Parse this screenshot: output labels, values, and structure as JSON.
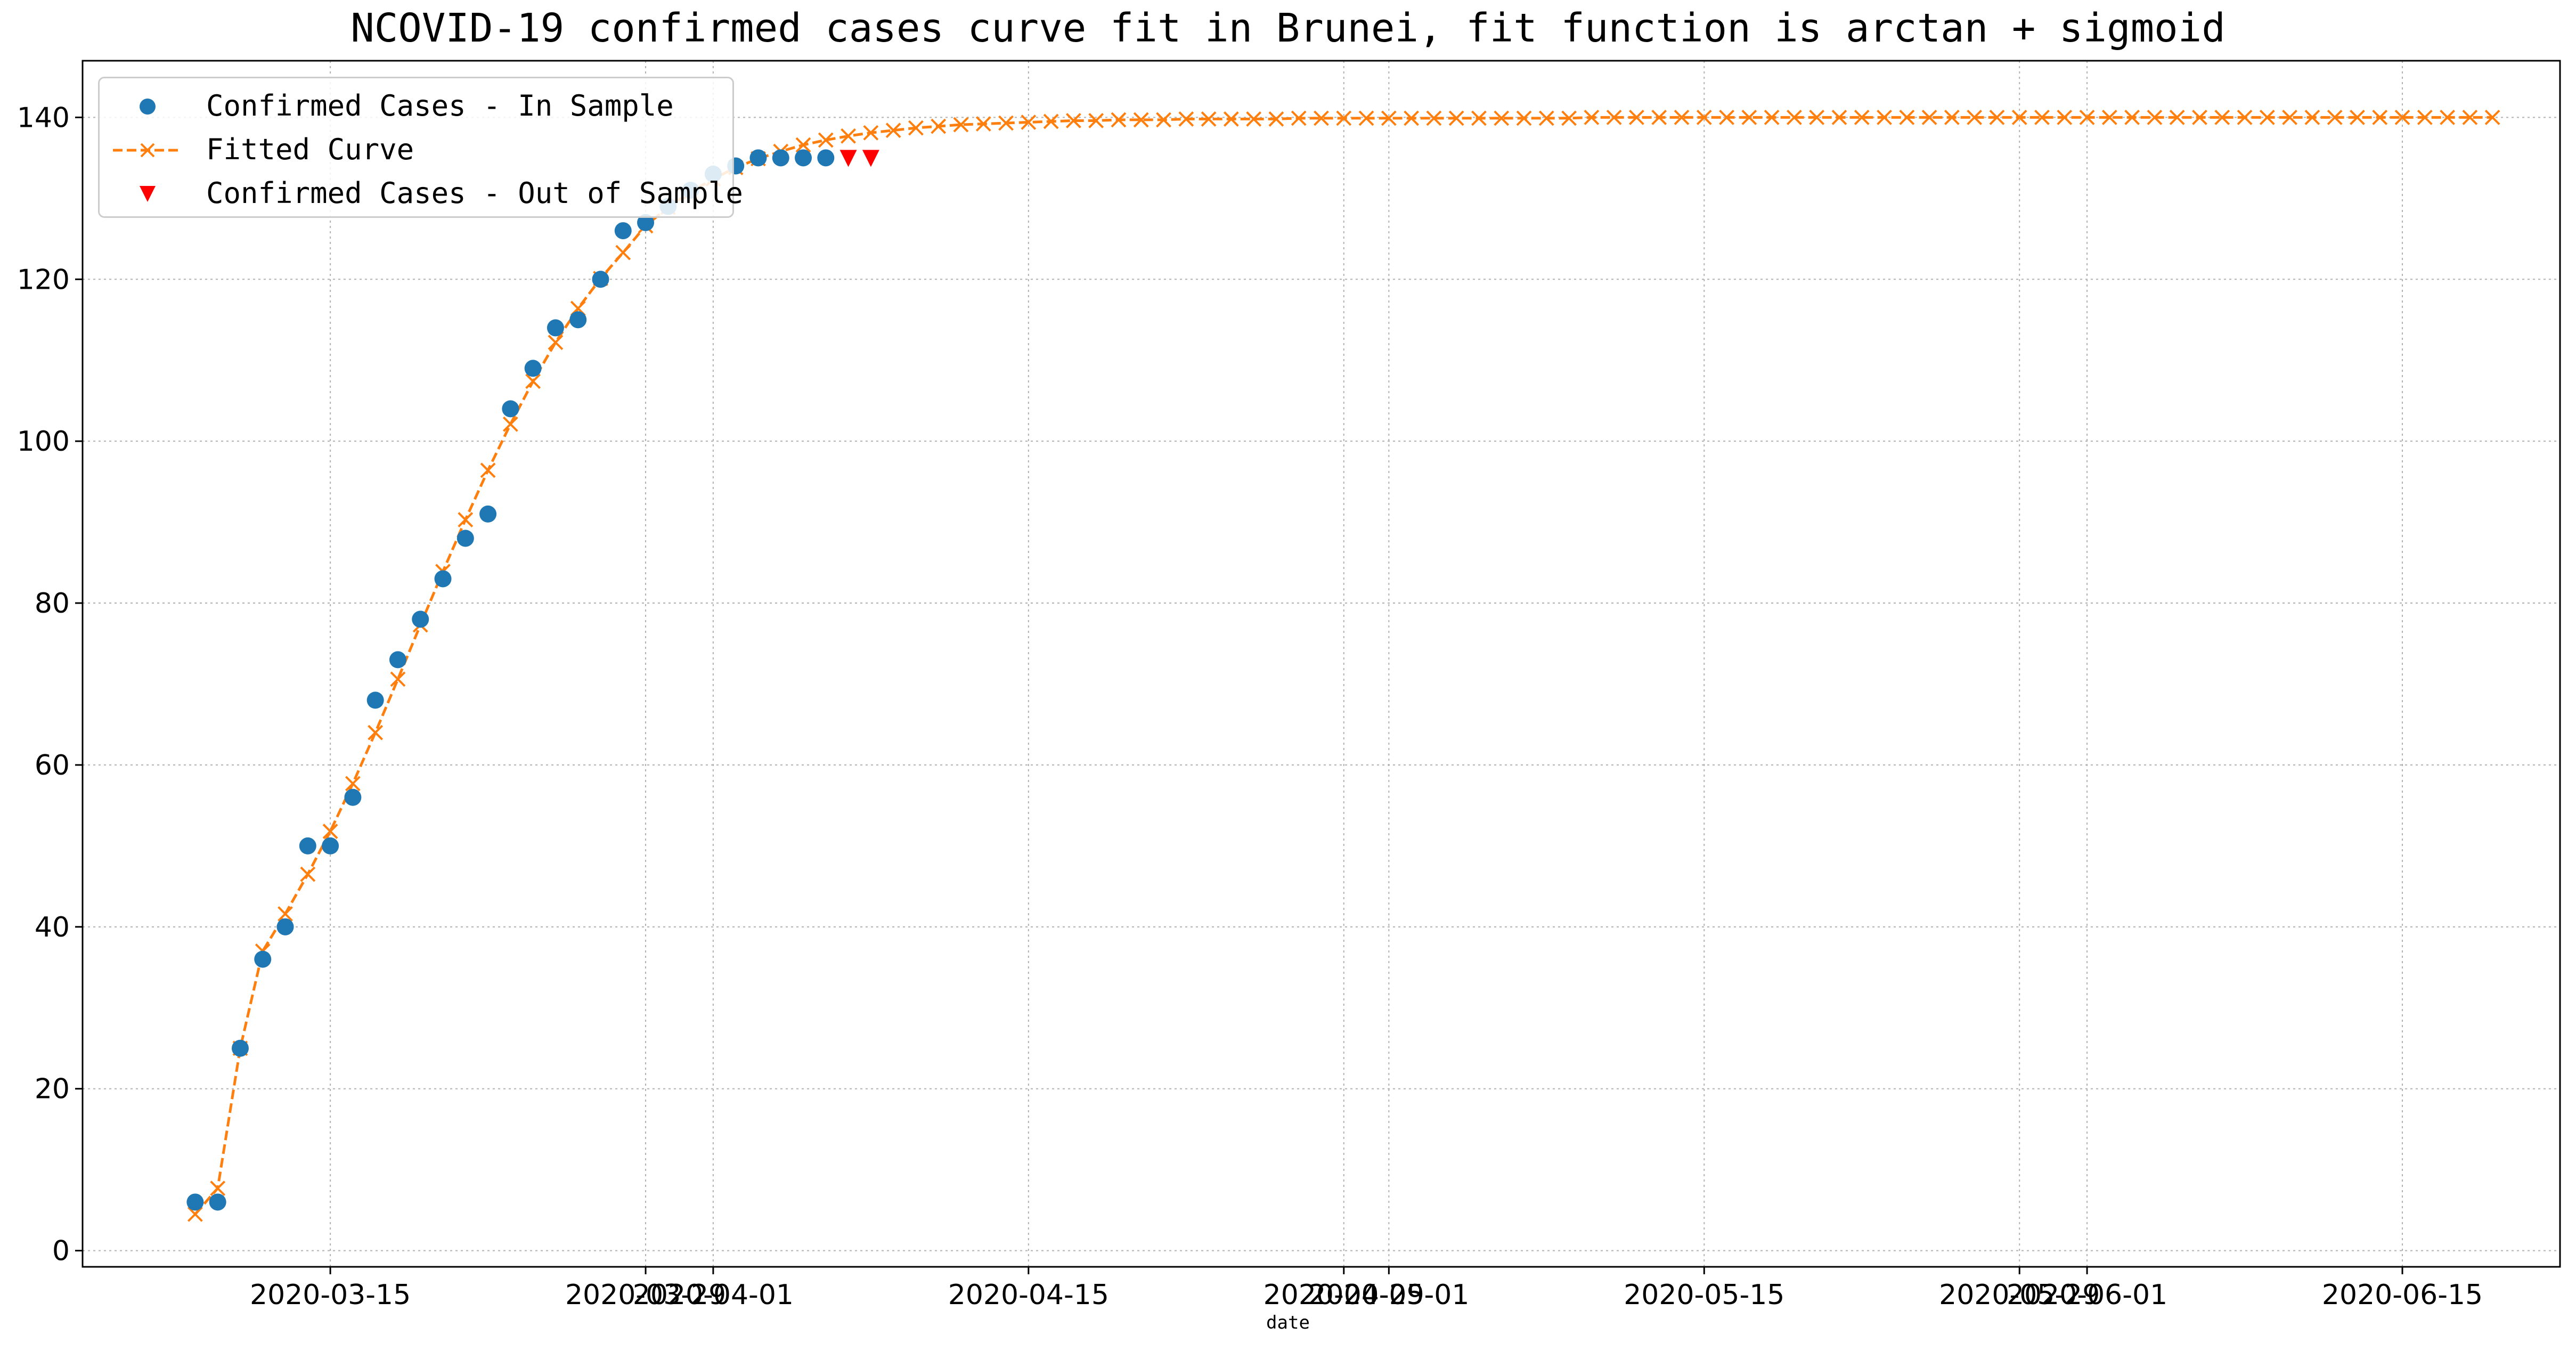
{
  "chart_data": {
    "type": "line",
    "title": "NCOVID-19 confirmed cases curve fit in Brunei, fit function is arctan + sigmoid",
    "xlabel": "date",
    "ylabel": "",
    "x_tick_labels": [
      "2020-03-15",
      "2020-03-29",
      "2020-04-01",
      "2020-04-15",
      "2020-04-29",
      "2020-05-01",
      "2020-05-15",
      "2020-05-29",
      "2020-06-01",
      "2020-06-15"
    ],
    "y_tick_labels": [
      "0",
      "20",
      "40",
      "60",
      "80",
      "100",
      "120",
      "140"
    ],
    "xlim": [
      "2020-03-04",
      "2020-06-22"
    ],
    "ylim": [
      -2,
      147
    ],
    "grid": true,
    "legend_position": "upper-left",
    "series": [
      {
        "name": "Confirmed Cases - In Sample",
        "kind": "scatter-circle",
        "color": "#1f77b4",
        "x": [
          "2020-03-09",
          "2020-03-10",
          "2020-03-11",
          "2020-03-12",
          "2020-03-13",
          "2020-03-14",
          "2020-03-15",
          "2020-03-16",
          "2020-03-17",
          "2020-03-18",
          "2020-03-19",
          "2020-03-20",
          "2020-03-21",
          "2020-03-22",
          "2020-03-23",
          "2020-03-24",
          "2020-03-25",
          "2020-03-26",
          "2020-03-27",
          "2020-03-28",
          "2020-03-29",
          "2020-03-30",
          "2020-03-31",
          "2020-04-01",
          "2020-04-02",
          "2020-04-03",
          "2020-04-04",
          "2020-04-05",
          "2020-04-06"
        ],
        "y": [
          6,
          6,
          25,
          36,
          40,
          50,
          50,
          56,
          68,
          73,
          78,
          83,
          88,
          91,
          104,
          109,
          114,
          115,
          120,
          126,
          127,
          129,
          131,
          133,
          134,
          135,
          135,
          135,
          135
        ]
      },
      {
        "name": "Fitted Curve",
        "kind": "dashed-line-x",
        "color": "#ff7f0e",
        "x_start": "2020-03-09",
        "x_end": "2020-06-18",
        "y": [
          4.5,
          7.7,
          25,
          37,
          41.6,
          46.5,
          51.8,
          57.7,
          64,
          70.6,
          77.3,
          83.9,
          90.3,
          96.4,
          102.1,
          107.4,
          112.2,
          116.4,
          120.1,
          123.3,
          126.6,
          128.9,
          130.8,
          132.4,
          133.8,
          134.9,
          135.8,
          136.6,
          137.2,
          137.7,
          138.1,
          138.4,
          138.7,
          138.9,
          139.1,
          139.2,
          139.3,
          139.4,
          139.5,
          139.6,
          139.6,
          139.7,
          139.7,
          139.7,
          139.8,
          139.8,
          139.8,
          139.8,
          139.8,
          139.9,
          139.9,
          139.9,
          139.9,
          139.9,
          139.9,
          139.9,
          139.9,
          139.9,
          139.9,
          139.9,
          139.9,
          139.9,
          140,
          140,
          140,
          140,
          140,
          140,
          140,
          140,
          140,
          140,
          140,
          140,
          140,
          140,
          140,
          140,
          140,
          140,
          140,
          140,
          140,
          140,
          140,
          140,
          140,
          140,
          140,
          140,
          140,
          140,
          140,
          140,
          140,
          140,
          140,
          140,
          140,
          140,
          140,
          140,
          140
        ]
      },
      {
        "name": "Confirmed Cases - Out of Sample",
        "kind": "scatter-triangle-down",
        "color": "#ff0000",
        "x": [
          "2020-04-07",
          "2020-04-08"
        ],
        "y": [
          135,
          135
        ]
      }
    ]
  }
}
